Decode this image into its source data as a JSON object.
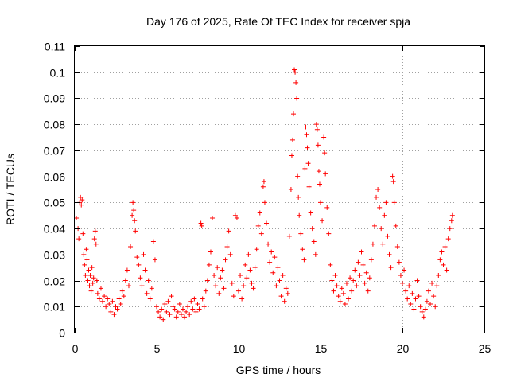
{
  "chart_data": {
    "type": "scatter",
    "title": "Day 176 of 2025, Rate Of TEC Index for receiver spja",
    "xlabel": "GPS time / hours",
    "ylabel": "ROTI / TECUs",
    "xlim": [
      0,
      25
    ],
    "ylim": [
      0,
      0.11
    ],
    "xticks": [
      0,
      5,
      10,
      15,
      20,
      25
    ],
    "xtick_labels": [
      "0",
      "5",
      "10",
      "15",
      "20",
      "25"
    ],
    "yticks": [
      0,
      0.01,
      0.02,
      0.03,
      0.04,
      0.05,
      0.06,
      0.07,
      0.08,
      0.09,
      0.1,
      0.11
    ],
    "ytick_labels": [
      "0",
      "0.01",
      "0.02",
      "0.03",
      "0.04",
      "0.05",
      "0.06",
      "0.07",
      "0.08",
      "0.09",
      "0.1",
      "0.11"
    ],
    "grid": true,
    "marker": "+",
    "color": "#ff0000",
    "series": [
      {
        "name": "ROTI",
        "points": [
          [
            0.1,
            0.044
          ],
          [
            0.2,
            0.04
          ],
          [
            0.25,
            0.036
          ],
          [
            0.3,
            0.05
          ],
          [
            0.35,
            0.052
          ],
          [
            0.4,
            0.049
          ],
          [
            0.45,
            0.051
          ],
          [
            0.5,
            0.038
          ],
          [
            0.55,
            0.03
          ],
          [
            0.6,
            0.026
          ],
          [
            0.65,
            0.022
          ],
          [
            0.7,
            0.032
          ],
          [
            0.75,
            0.028
          ],
          [
            0.8,
            0.02
          ],
          [
            0.85,
            0.024
          ],
          [
            0.9,
            0.018
          ],
          [
            0.95,
            0.022
          ],
          [
            1.0,
            0.016
          ],
          [
            1.05,
            0.025
          ],
          [
            1.1,
            0.019
          ],
          [
            1.15,
            0.021
          ],
          [
            1.2,
            0.036
          ],
          [
            1.25,
            0.039
          ],
          [
            1.3,
            0.034
          ],
          [
            1.35,
            0.02
          ],
          [
            1.4,
            0.015
          ],
          [
            1.5,
            0.013
          ],
          [
            1.6,
            0.017
          ],
          [
            1.7,
            0.012
          ],
          [
            1.8,
            0.014
          ],
          [
            1.9,
            0.01
          ],
          [
            2.0,
            0.013
          ],
          [
            2.1,
            0.011
          ],
          [
            2.2,
            0.008
          ],
          [
            2.3,
            0.012
          ],
          [
            2.4,
            0.007
          ],
          [
            2.5,
            0.01
          ],
          [
            2.6,
            0.009
          ],
          [
            2.7,
            0.013
          ],
          [
            2.8,
            0.011
          ],
          [
            2.9,
            0.016
          ],
          [
            3.0,
            0.014
          ],
          [
            3.1,
            0.02
          ],
          [
            3.2,
            0.024
          ],
          [
            3.3,
            0.018
          ],
          [
            3.4,
            0.033
          ],
          [
            3.5,
            0.045
          ],
          [
            3.55,
            0.05
          ],
          [
            3.6,
            0.047
          ],
          [
            3.65,
            0.043
          ],
          [
            3.7,
            0.039
          ],
          [
            3.8,
            0.029
          ],
          [
            3.9,
            0.026
          ],
          [
            4.0,
            0.021
          ],
          [
            4.1,
            0.018
          ],
          [
            4.2,
            0.03
          ],
          [
            4.3,
            0.024
          ],
          [
            4.4,
            0.015
          ],
          [
            4.5,
            0.02
          ],
          [
            4.6,
            0.013
          ],
          [
            4.7,
            0.017
          ],
          [
            4.8,
            0.035
          ],
          [
            4.9,
            0.028
          ],
          [
            5.0,
            0.01
          ],
          [
            5.1,
            0.008
          ],
          [
            5.2,
            0.006
          ],
          [
            5.3,
            0.009
          ],
          [
            5.4,
            0.005
          ],
          [
            5.5,
            0.011
          ],
          [
            5.6,
            0.008
          ],
          [
            5.7,
            0.012
          ],
          [
            5.8,
            0.007
          ],
          [
            5.9,
            0.014
          ],
          [
            6.0,
            0.01
          ],
          [
            6.1,
            0.009
          ],
          [
            6.2,
            0.006
          ],
          [
            6.3,
            0.008
          ],
          [
            6.4,
            0.011
          ],
          [
            6.5,
            0.007
          ],
          [
            6.6,
            0.009
          ],
          [
            6.7,
            0.006
          ],
          [
            6.8,
            0.008
          ],
          [
            6.9,
            0.01
          ],
          [
            7.0,
            0.007
          ],
          [
            7.1,
            0.012
          ],
          [
            7.2,
            0.009
          ],
          [
            7.3,
            0.013
          ],
          [
            7.4,
            0.008
          ],
          [
            7.5,
            0.011
          ],
          [
            7.6,
            0.009
          ],
          [
            7.7,
            0.042
          ],
          [
            7.75,
            0.041
          ],
          [
            7.8,
            0.013
          ],
          [
            7.9,
            0.01
          ],
          [
            8.0,
            0.016
          ],
          [
            8.1,
            0.02
          ],
          [
            8.2,
            0.026
          ],
          [
            8.3,
            0.031
          ],
          [
            8.4,
            0.044
          ],
          [
            8.5,
            0.022
          ],
          [
            8.6,
            0.018
          ],
          [
            8.7,
            0.025
          ],
          [
            8.8,
            0.015
          ],
          [
            8.9,
            0.021
          ],
          [
            9.0,
            0.024
          ],
          [
            9.1,
            0.017
          ],
          [
            9.2,
            0.028
          ],
          [
            9.3,
            0.033
          ],
          [
            9.4,
            0.039
          ],
          [
            9.5,
            0.03
          ],
          [
            9.6,
            0.019
          ],
          [
            9.7,
            0.014
          ],
          [
            9.8,
            0.045
          ],
          [
            9.9,
            0.044
          ],
          [
            10.0,
            0.016
          ],
          [
            10.1,
            0.022
          ],
          [
            10.2,
            0.013
          ],
          [
            10.3,
            0.018
          ],
          [
            10.4,
            0.026
          ],
          [
            10.5,
            0.021
          ],
          [
            10.6,
            0.03
          ],
          [
            10.7,
            0.024
          ],
          [
            10.8,
            0.019
          ],
          [
            10.9,
            0.017
          ],
          [
            11.0,
            0.025
          ],
          [
            11.1,
            0.032
          ],
          [
            11.2,
            0.041
          ],
          [
            11.3,
            0.046
          ],
          [
            11.4,
            0.038
          ],
          [
            11.5,
            0.056
          ],
          [
            11.55,
            0.058
          ],
          [
            11.6,
            0.05
          ],
          [
            11.7,
            0.042
          ],
          [
            11.8,
            0.034
          ],
          [
            11.9,
            0.027
          ],
          [
            12.0,
            0.031
          ],
          [
            12.1,
            0.023
          ],
          [
            12.2,
            0.029
          ],
          [
            12.3,
            0.018
          ],
          [
            12.4,
            0.025
          ],
          [
            12.5,
            0.02
          ],
          [
            12.6,
            0.014
          ],
          [
            12.7,
            0.022
          ],
          [
            12.8,
            0.012
          ],
          [
            12.9,
            0.017
          ],
          [
            13.0,
            0.015
          ],
          [
            13.1,
            0.037
          ],
          [
            13.2,
            0.055
          ],
          [
            13.25,
            0.068
          ],
          [
            13.3,
            0.074
          ],
          [
            13.35,
            0.084
          ],
          [
            13.4,
            0.101
          ],
          [
            13.45,
            0.1
          ],
          [
            13.5,
            0.096
          ],
          [
            13.55,
            0.09
          ],
          [
            13.6,
            0.06
          ],
          [
            13.65,
            0.052
          ],
          [
            13.7,
            0.045
          ],
          [
            13.8,
            0.038
          ],
          [
            13.9,
            0.032
          ],
          [
            14.0,
            0.028
          ],
          [
            14.05,
            0.063
          ],
          [
            14.1,
            0.079
          ],
          [
            14.15,
            0.076
          ],
          [
            14.2,
            0.071
          ],
          [
            14.25,
            0.065
          ],
          [
            14.3,
            0.056
          ],
          [
            14.4,
            0.046
          ],
          [
            14.5,
            0.04
          ],
          [
            14.6,
            0.035
          ],
          [
            14.7,
            0.03
          ],
          [
            14.75,
            0.08
          ],
          [
            14.8,
            0.078
          ],
          [
            14.85,
            0.072
          ],
          [
            14.9,
            0.062
          ],
          [
            14.95,
            0.057
          ],
          [
            15.0,
            0.05
          ],
          [
            15.1,
            0.043
          ],
          [
            15.2,
            0.075
          ],
          [
            15.25,
            0.069
          ],
          [
            15.3,
            0.061
          ],
          [
            15.4,
            0.048
          ],
          [
            15.5,
            0.038
          ],
          [
            15.6,
            0.026
          ],
          [
            15.7,
            0.02
          ],
          [
            15.8,
            0.016
          ],
          [
            15.9,
            0.022
          ],
          [
            16.0,
            0.018
          ],
          [
            16.1,
            0.014
          ],
          [
            16.2,
            0.012
          ],
          [
            16.3,
            0.017
          ],
          [
            16.4,
            0.015
          ],
          [
            16.5,
            0.011
          ],
          [
            16.6,
            0.019
          ],
          [
            16.7,
            0.013
          ],
          [
            16.8,
            0.021
          ],
          [
            16.9,
            0.016
          ],
          [
            17.0,
            0.02
          ],
          [
            17.1,
            0.024
          ],
          [
            17.2,
            0.018
          ],
          [
            17.3,
            0.027
          ],
          [
            17.4,
            0.022
          ],
          [
            17.5,
            0.031
          ],
          [
            17.6,
            0.026
          ],
          [
            17.7,
            0.019
          ],
          [
            17.8,
            0.023
          ],
          [
            17.9,
            0.016
          ],
          [
            18.0,
            0.021
          ],
          [
            18.1,
            0.028
          ],
          [
            18.2,
            0.034
          ],
          [
            18.3,
            0.041
          ],
          [
            18.4,
            0.052
          ],
          [
            18.5,
            0.055
          ],
          [
            18.6,
            0.048
          ],
          [
            18.7,
            0.04
          ],
          [
            18.8,
            0.034
          ],
          [
            18.9,
            0.045
          ],
          [
            19.0,
            0.05
          ],
          [
            19.1,
            0.037
          ],
          [
            19.2,
            0.03
          ],
          [
            19.3,
            0.025
          ],
          [
            19.4,
            0.06
          ],
          [
            19.45,
            0.058
          ],
          [
            19.5,
            0.05
          ],
          [
            19.6,
            0.041
          ],
          [
            19.7,
            0.033
          ],
          [
            19.8,
            0.027
          ],
          [
            19.9,
            0.022
          ],
          [
            20.0,
            0.019
          ],
          [
            20.1,
            0.024
          ],
          [
            20.2,
            0.016
          ],
          [
            20.3,
            0.013
          ],
          [
            20.4,
            0.018
          ],
          [
            20.5,
            0.011
          ],
          [
            20.6,
            0.015
          ],
          [
            20.7,
            0.009
          ],
          [
            20.8,
            0.013
          ],
          [
            20.9,
            0.02
          ],
          [
            21.0,
            0.014
          ],
          [
            21.1,
            0.01
          ],
          [
            21.2,
            0.008
          ],
          [
            21.3,
            0.006
          ],
          [
            21.4,
            0.009
          ],
          [
            21.5,
            0.012
          ],
          [
            21.6,
            0.016
          ],
          [
            21.7,
            0.011
          ],
          [
            21.8,
            0.019
          ],
          [
            21.9,
            0.014
          ],
          [
            22.0,
            0.01
          ],
          [
            22.1,
            0.018
          ],
          [
            22.2,
            0.022
          ],
          [
            22.3,
            0.028
          ],
          [
            22.4,
            0.031
          ],
          [
            22.5,
            0.026
          ],
          [
            22.6,
            0.033
          ],
          [
            22.7,
            0.024
          ],
          [
            22.8,
            0.036
          ],
          [
            22.9,
            0.04
          ],
          [
            23.0,
            0.043
          ],
          [
            23.05,
            0.045
          ]
        ]
      }
    ]
  }
}
